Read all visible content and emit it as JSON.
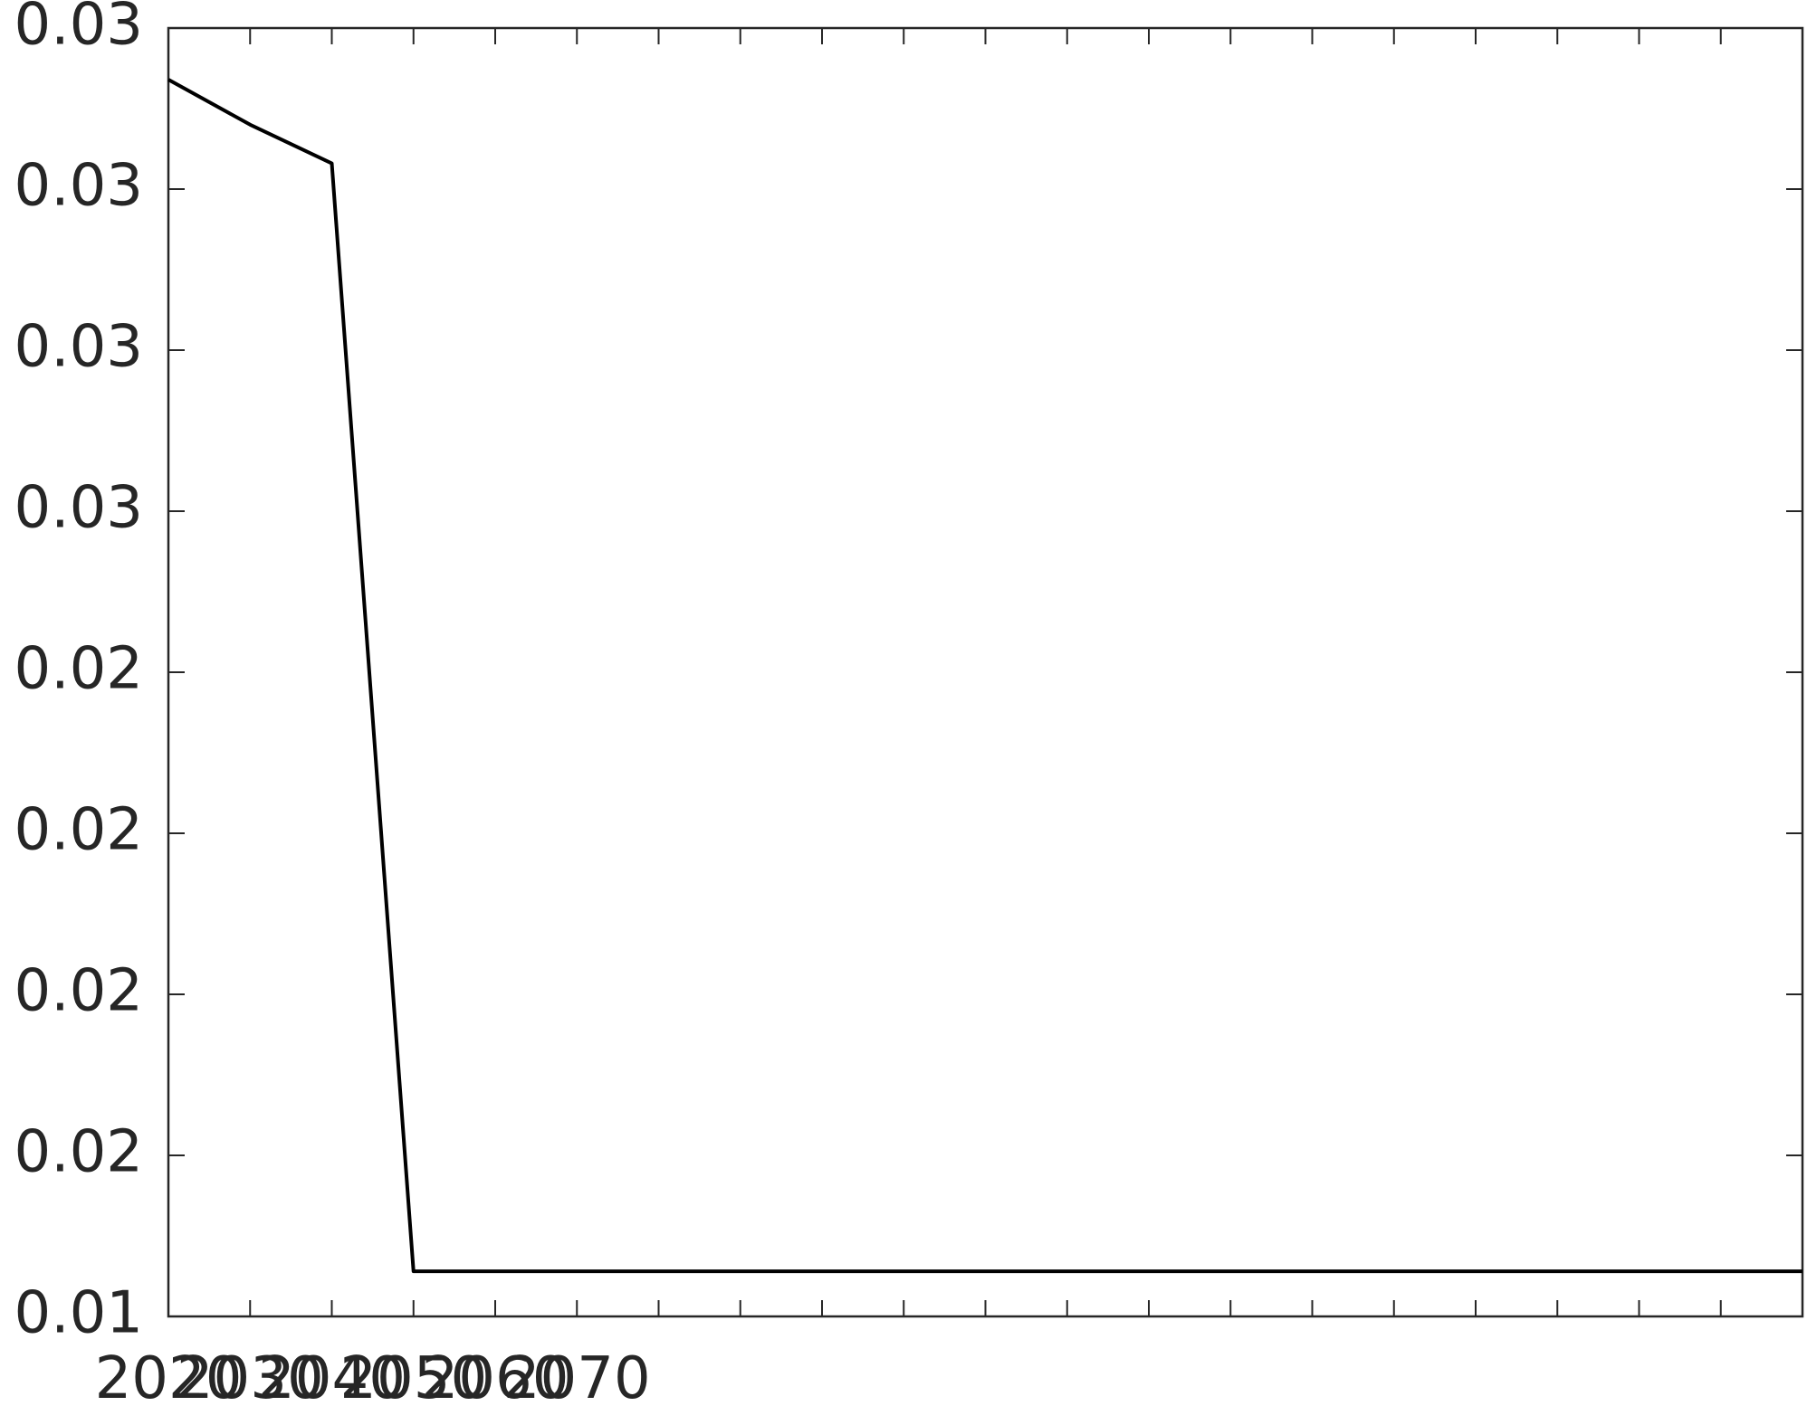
{
  "chart_data": {
    "type": "line",
    "categories": [
      "2020",
      "2030",
      "2040",
      "2050",
      "2060",
      "2070",
      null,
      null,
      null,
      null,
      null,
      null,
      null,
      null,
      null,
      null,
      null,
      null,
      null,
      null,
      null
    ],
    "series": [
      {
        "color": "#000000",
        "values": [
          0.0317,
          0.031,
          0.0304,
          0.0132,
          0.0132,
          0.0132,
          0.0132,
          0.0132,
          0.0132,
          0.0132,
          0.0132,
          0.0132,
          0.0132,
          0.0132,
          0.0132,
          0.0132,
          0.0132,
          0.0132,
          0.0132,
          0.0132,
          0.0132
        ]
      }
    ],
    "ylim": [
      0.0125,
      0.0325
    ],
    "yticks": [
      {
        "value": 0.0125,
        "label": "0.01"
      },
      {
        "value": 0.015,
        "label": "0.02"
      },
      {
        "value": 0.0175,
        "label": "0.02"
      },
      {
        "value": 0.02,
        "label": "0.02"
      },
      {
        "value": 0.0225,
        "label": "0.02"
      },
      {
        "value": 0.025,
        "label": "0.03"
      },
      {
        "value": 0.0275,
        "label": "0.03"
      },
      {
        "value": 0.03,
        "label": "0.03"
      },
      {
        "value": 0.0325,
        "label": "0.03"
      }
    ]
  }
}
